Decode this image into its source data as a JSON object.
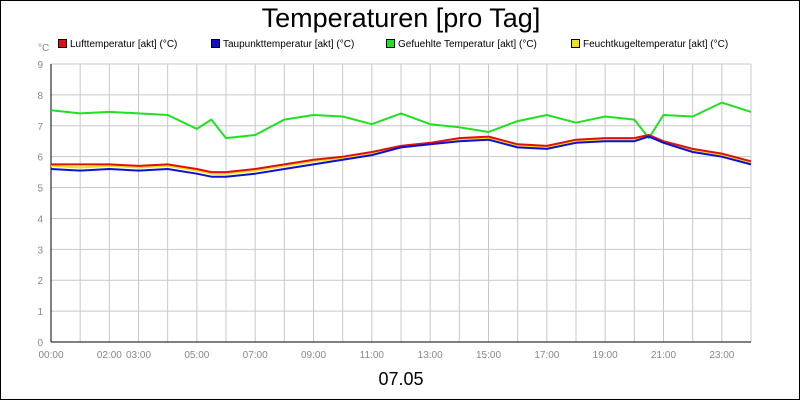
{
  "chart_data": {
    "type": "line",
    "title": "Temperaturen [pro Tag]",
    "xlabel": "07.05",
    "ylabel": "°C",
    "ylim": [
      0,
      9
    ],
    "yticks": [
      0,
      1,
      2,
      3,
      4,
      5,
      6,
      7,
      8,
      9
    ],
    "xlim": [
      0,
      24
    ],
    "xticks": [
      {
        "h": 0,
        "label": "00:00"
      },
      {
        "h": 2,
        "label": "02:00"
      },
      {
        "h": 3,
        "label": "03:00"
      },
      {
        "h": 5,
        "label": "05:00"
      },
      {
        "h": 7,
        "label": "07:00"
      },
      {
        "h": 9,
        "label": "09:00"
      },
      {
        "h": 11,
        "label": "11:00"
      },
      {
        "h": 13,
        "label": "13:00"
      },
      {
        "h": 15,
        "label": "15:00"
      },
      {
        "h": 17,
        "label": "17:00"
      },
      {
        "h": 19,
        "label": "19:00"
      },
      {
        "h": 21,
        "label": "21:00"
      },
      {
        "h": 23,
        "label": "23:00"
      }
    ],
    "x": [
      0,
      1,
      2,
      3,
      4,
      5,
      5.5,
      6,
      7,
      8,
      9,
      10,
      11,
      12,
      13,
      14,
      15,
      16,
      17,
      18,
      19,
      20,
      20.5,
      21,
      22,
      23,
      24
    ],
    "series": [
      {
        "name": "Lufttemperatur [akt] (°C)",
        "color": "#e01010",
        "values": [
          5.75,
          5.75,
          5.75,
          5.7,
          5.75,
          5.6,
          5.5,
          5.5,
          5.6,
          5.75,
          5.9,
          6.0,
          6.15,
          6.35,
          6.45,
          6.6,
          6.65,
          6.4,
          6.35,
          6.55,
          6.6,
          6.6,
          6.7,
          6.5,
          6.25,
          6.1,
          5.85
        ]
      },
      {
        "name": "Taupunkttemperatur [akt] (°C)",
        "color": "#1010d0",
        "values": [
          5.6,
          5.55,
          5.6,
          5.55,
          5.6,
          5.45,
          5.35,
          5.35,
          5.45,
          5.6,
          5.75,
          5.9,
          6.05,
          6.3,
          6.4,
          6.5,
          6.55,
          6.3,
          6.25,
          6.45,
          6.5,
          6.5,
          6.65,
          6.45,
          6.15,
          6.0,
          5.75
        ]
      },
      {
        "name": "Gefuehlte Temperatur [akt] (°C)",
        "color": "#20e020",
        "values": [
          7.5,
          7.4,
          7.45,
          7.4,
          7.35,
          6.9,
          7.2,
          6.6,
          6.7,
          7.2,
          7.35,
          7.3,
          7.05,
          7.4,
          7.05,
          6.95,
          6.8,
          7.15,
          7.35,
          7.1,
          7.3,
          7.2,
          6.6,
          7.35,
          7.3,
          7.75,
          7.45
        ]
      },
      {
        "name": "Feuchtkugeltemperatur [akt] (°C)",
        "color": "#f0e020",
        "values": [
          5.7,
          5.65,
          5.7,
          5.65,
          5.7,
          5.55,
          5.45,
          5.45,
          5.55,
          5.7,
          5.85,
          5.95,
          6.1,
          6.3,
          6.42,
          6.55,
          6.6,
          6.35,
          6.3,
          6.5,
          6.55,
          6.55,
          6.7,
          6.48,
          6.2,
          6.05,
          5.8
        ]
      }
    ],
    "legend": [
      {
        "label": "Lufttemperatur [akt] (°C)",
        "color": "#e01010"
      },
      {
        "label": "Taupunkttemperatur [akt] (°C)",
        "color": "#1010d0"
      },
      {
        "label": "Gefuehlte Temperatur [akt] (°C)",
        "color": "#20e020"
      },
      {
        "label": "Feuchtkugeltemperatur [akt] (°C)",
        "color": "#f0e020"
      }
    ],
    "grid": true,
    "legend_position": "top"
  }
}
